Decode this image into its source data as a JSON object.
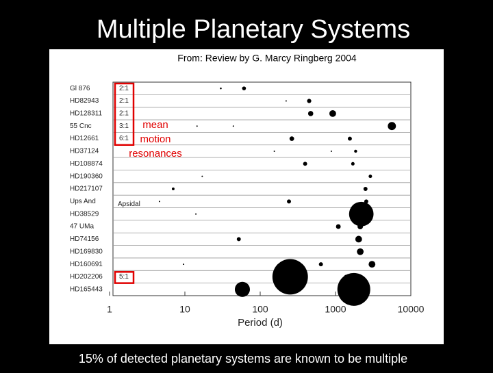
{
  "slide": {
    "title": "Multiple Planetary Systems",
    "source": "From: Review by G. Marcy Ringberg 2004",
    "caption": "15% of detected planetary systems are known to be multiple"
  },
  "chart_data": {
    "type": "scatter",
    "xlabel": "Period (d)",
    "annotation": "mean motion resonances",
    "xlog": true,
    "xlim": [
      1,
      10000
    ],
    "xticks": [
      1,
      10,
      100,
      1000,
      10000
    ],
    "color": "#000000",
    "highlight_color": "#e00000",
    "rows": [
      {
        "name": "Gl 876",
        "resonance": "2:1",
        "x": [
          30,
          61
        ],
        "sizes": [
          0.1,
          0.5
        ]
      },
      {
        "name": "HD82943",
        "resonance": "2:1",
        "x": [
          221,
          447
        ],
        "sizes": [
          0.05,
          0.6
        ]
      },
      {
        "name": "HD128311",
        "resonance": "2:1",
        "x": [
          468,
          918
        ],
        "sizes": [
          0.9,
          1.5
        ]
      },
      {
        "name": "55 Cnc",
        "resonance": "3:1",
        "x": [
          14.5,
          44,
          5600
        ],
        "sizes": [
          0.05,
          0.05,
          2.2
        ]
      },
      {
        "name": "HD12661",
        "resonance": "6:1",
        "x": [
          263,
          1550
        ],
        "sizes": [
          0.7,
          0.55
        ]
      },
      {
        "name": "HD37124",
        "x": [
          154,
          880,
          1850
        ],
        "sizes": [
          0.05,
          0.05,
          0.3
        ]
      },
      {
        "name": "HD108874",
        "x": [
          395,
          1700
        ],
        "sizes": [
          0.55,
          0.4
        ]
      },
      {
        "name": "HD190360",
        "x": [
          17,
          2900
        ],
        "sizes": [
          0.05,
          0.4
        ]
      },
      {
        "name": "HD217107",
        "x": [
          7,
          2500
        ],
        "sizes": [
          0.25,
          0.55
        ]
      },
      {
        "name": "Ups And",
        "note": "Apsidal",
        "x": [
          4.6,
          241,
          2560
        ],
        "sizes": [
          0.05,
          0.55,
          0.55
        ]
      },
      {
        "name": "HD38529",
        "x": [
          14,
          2200
        ],
        "sizes": [
          0.05,
          20
        ]
      },
      {
        "name": "47 UMa",
        "x": [
          1090,
          2130
        ],
        "sizes": [
          0.75,
          1
        ]
      },
      {
        "name": "HD74156",
        "x": [
          52,
          2030
        ],
        "sizes": [
          0.55,
          1.5
        ]
      },
      {
        "name": "HD169830",
        "x": [
          2130
        ],
        "sizes": [
          1.5
        ]
      },
      {
        "name": "HD160691",
        "x": [
          9.6,
          640,
          3050
        ],
        "sizes": [
          0.05,
          0.55,
          1.5
        ]
      },
      {
        "name": "HD202206",
        "resonance": "5:1",
        "x": [
          250,
          1380
        ],
        "sizes": [
          42,
          0.55
        ]
      },
      {
        "name": "HD165443",
        "x": [
          58,
          1750
        ],
        "sizes": [
          7.6,
          36
        ]
      }
    ]
  }
}
